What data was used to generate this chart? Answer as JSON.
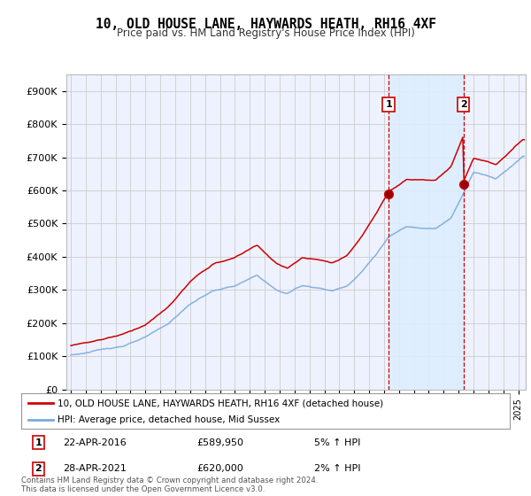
{
  "title": "10, OLD HOUSE LANE, HAYWARDS HEATH, RH16 4XF",
  "subtitle": "Price paid vs. HM Land Registry's House Price Index (HPI)",
  "ylabel_ticks": [
    "£0",
    "£100K",
    "£200K",
    "£300K",
    "£400K",
    "£500K",
    "£600K",
    "£700K",
    "£800K",
    "£900K"
  ],
  "ytick_values": [
    0,
    100000,
    200000,
    300000,
    400000,
    500000,
    600000,
    700000,
    800000,
    900000
  ],
  "ylim": [
    0,
    950000
  ],
  "transaction1_year": 2016.31,
  "transaction1_price": 589950,
  "transaction2_year": 2021.32,
  "transaction2_price": 620000,
  "transaction1_date": "22-APR-2016",
  "transaction2_date": "28-APR-2021",
  "transaction1_hpi_pct": "5% ↑ HPI",
  "transaction2_hpi_pct": "2% ↑ HPI",
  "legend_line1": "10, OLD HOUSE LANE, HAYWARDS HEATH, RH16 4XF (detached house)",
  "legend_line2": "HPI: Average price, detached house, Mid Sussex",
  "footer": "Contains HM Land Registry data © Crown copyright and database right 2024.\nThis data is licensed under the Open Government Licence v3.0.",
  "line_color_red": "#cc0000",
  "line_color_blue": "#7aaadd",
  "fill_color": "#ddeeff",
  "grid_color": "#cccccc",
  "background_color": "#ffffff",
  "plot_bg_color": "#eef2ff",
  "vline_color": "#cc0000",
  "box_color": "#cc0000",
  "xlim_left": 1994.7,
  "xlim_right": 2025.5
}
